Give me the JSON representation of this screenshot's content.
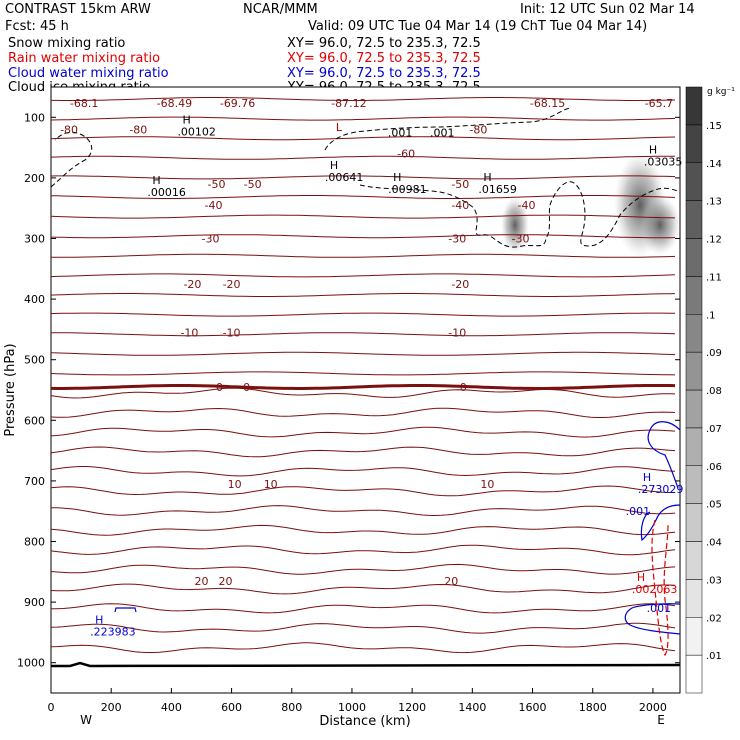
{
  "header": {
    "title": "CONTRAST 15km ARW",
    "forecast": "Fcst:   45 h",
    "center": "NCAR/MMM",
    "init": "Init: 12 UTC Sun 02 Mar 14",
    "valid": "Valid: 09 UTC Tue 04 Mar 14 (19 ChT Tue 04 Mar 14)"
  },
  "legend": [
    {
      "label": "Snow mixing ratio",
      "xy": "XY=  96.0, 72.5 to 235.3, 72.5",
      "color": "#000000"
    },
    {
      "label": "Rain water mixing ratio",
      "xy": "XY=  96.0, 72.5 to 235.3, 72.5",
      "color": "#e00000"
    },
    {
      "label": "Cloud water mixing ratio",
      "xy": "XY=  96.0, 72.5 to 235.3, 72.5",
      "color": "#0000d0"
    },
    {
      "label": "Cloud ice mixing ratio",
      "xy": "XY=  96.0, 72.5 to 235.3, 72.5",
      "color": "#000000"
    }
  ],
  "chart_data": {
    "type": "contour cross-section",
    "xlabel": "Distance (km)",
    "ylabel": "Pressure (hPa)",
    "xlim": [
      0,
      2090
    ],
    "ylim": [
      50,
      1050
    ],
    "x_ticks": [
      0,
      200,
      400,
      600,
      800,
      1000,
      1200,
      1400,
      1600,
      1800,
      2000
    ],
    "y_ticks": [
      100,
      200,
      300,
      400,
      500,
      600,
      700,
      800,
      900,
      1000
    ],
    "x_end_labels": {
      "west": "W",
      "east": "E"
    },
    "colorbar": {
      "unit": "g kg⁻¹",
      "levels": [
        ".01",
        ".02",
        ".03",
        ".04",
        ".05",
        ".06",
        ".07",
        ".08",
        ".09",
        ".1",
        ".11",
        ".12",
        ".13",
        ".14",
        ".15"
      ]
    },
    "temperature_contours": [
      {
        "label": "-80",
        "p": 120,
        "x": [
          60,
          290,
          1420
        ]
      },
      {
        "label": "-60",
        "p": 160,
        "x": [
          1180
        ]
      },
      {
        "label": "-50",
        "p": 210,
        "x": [
          550,
          670,
          1360
        ]
      },
      {
        "label": "-40",
        "p": 245,
        "x": [
          540,
          1360,
          1580
        ]
      },
      {
        "label": "-30",
        "p": 300,
        "x": [
          530,
          1350,
          1560
        ]
      },
      {
        "label": "-20",
        "p": 375,
        "x": [
          470,
          600,
          1360
        ]
      },
      {
        "label": "-10",
        "p": 455,
        "x": [
          460,
          600,
          1350
        ]
      },
      {
        "label": "0",
        "p": 545,
        "x": [
          560,
          650,
          1370
        ]
      },
      {
        "label": "10",
        "p": 705,
        "x": [
          610,
          730,
          1450
        ]
      },
      {
        "label": "20",
        "p": 865,
        "x": [
          500,
          580,
          1330
        ]
      }
    ],
    "top_values": [
      "-68.1",
      "-68.49",
      "-69.76",
      "-87.12",
      "-68.15",
      "-65.7"
    ],
    "highs": [
      {
        "label": "H",
        "value": ".00102",
        "x": 470,
        "p": 110
      },
      {
        "label": "H",
        "value": ".00016",
        "x": 370,
        "p": 210
      },
      {
        "label": "H",
        "value": ".00641",
        "x": 960,
        "p": 185
      },
      {
        "label": "H",
        "value": ".00981",
        "x": 1170,
        "p": 205
      },
      {
        "label": "H",
        "value": ".01659",
        "x": 1470,
        "p": 205
      },
      {
        "label": "H",
        "value": ".03035",
        "x": 2020,
        "p": 160
      },
      {
        "label": "H",
        "value": ".273029",
        "x": 2000,
        "p": 700
      },
      {
        "label": "H",
        "value": ".002063",
        "x": 1980,
        "p": 865
      },
      {
        "label": "H",
        "value": ".223983",
        "x": 180,
        "p": 935
      }
    ],
    "lows": [
      {
        "label": "L",
        "value": "-87.12",
        "x": 990,
        "p": 90
      }
    ],
    "ice_contour_labels": [
      ".001",
      ".001"
    ],
    "cloud_water_labels": [
      ".001",
      ".001"
    ]
  }
}
